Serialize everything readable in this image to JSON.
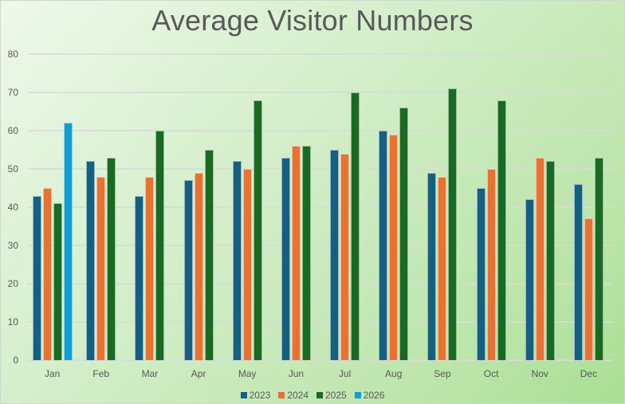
{
  "chart_data": {
    "type": "bar",
    "title": "Average Visitor Numbers",
    "xlabel": "",
    "ylabel": "",
    "ylim": [
      0,
      80
    ],
    "yticks": [
      0,
      10,
      20,
      30,
      40,
      50,
      60,
      70,
      80
    ],
    "grid": true,
    "legend_position": "bottom",
    "categories": [
      "Jan",
      "Feb",
      "Mar",
      "Apr",
      "May",
      "Jun",
      "Jul",
      "Aug",
      "Sep",
      "Oct",
      "Nov",
      "Dec"
    ],
    "series": [
      {
        "name": "2023",
        "color": "#156082",
        "values": [
          43,
          52,
          43,
          47,
          52,
          53,
          55,
          60,
          49,
          45,
          42,
          46
        ]
      },
      {
        "name": "2024",
        "color": "#E97132",
        "values": [
          45,
          48,
          48,
          49,
          50,
          56,
          54,
          59,
          48,
          50,
          53,
          37
        ]
      },
      {
        "name": "2025",
        "color": "#196B24",
        "values": [
          41,
          53,
          60,
          55,
          68,
          56,
          70,
          66,
          71,
          68,
          52,
          53
        ]
      },
      {
        "name": "2026",
        "color": "#0F9ED5",
        "values": [
          62,
          null,
          null,
          null,
          null,
          null,
          null,
          null,
          null,
          null,
          null,
          null
        ]
      }
    ]
  }
}
